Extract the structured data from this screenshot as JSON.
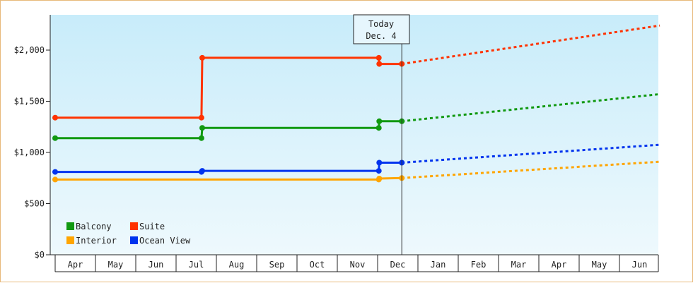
{
  "chart_data": {
    "type": "line",
    "x": [
      "Apr",
      "May",
      "Jun",
      "Jul",
      "Aug",
      "Sep",
      "Oct",
      "Nov",
      "Dec",
      "Jan",
      "Feb",
      "Mar",
      "Apr",
      "May",
      "Jun"
    ],
    "y_ticks": [
      "$0",
      "$500",
      "$1,000",
      "$1,500",
      "$2,000"
    ],
    "ylim": [
      0,
      2350
    ],
    "grid": false,
    "legend_placement": "bottom-left",
    "today_marker": {
      "line1": "Today",
      "line2": "Dec. 4"
    },
    "series": [
      {
        "name": "Suite",
        "color": "#ff3300",
        "history": [
          [
            0,
            1340
          ],
          [
            3.63,
            1340
          ],
          [
            3.65,
            1925
          ],
          [
            8.03,
            1925
          ],
          [
            8.04,
            1865
          ],
          [
            8.6,
            1865
          ]
        ],
        "forecast": [
          [
            8.6,
            1865
          ],
          [
            15,
            2240
          ]
        ]
      },
      {
        "name": "Balcony",
        "color": "#119911",
        "history": [
          [
            0,
            1140
          ],
          [
            3.63,
            1140
          ],
          [
            3.65,
            1240
          ],
          [
            8.03,
            1240
          ],
          [
            8.04,
            1305
          ],
          [
            8.6,
            1305
          ]
        ],
        "forecast": [
          [
            8.6,
            1305
          ],
          [
            15,
            1570
          ]
        ]
      },
      {
        "name": "Ocean View",
        "color": "#0033ee",
        "history": [
          [
            0,
            810
          ],
          [
            3.63,
            810
          ],
          [
            3.65,
            820
          ],
          [
            8.03,
            820
          ],
          [
            8.04,
            900
          ],
          [
            8.6,
            900
          ]
        ],
        "forecast": [
          [
            8.6,
            900
          ],
          [
            15,
            1075
          ]
        ]
      },
      {
        "name": "Interior",
        "color": "#ffa500",
        "history": [
          [
            0,
            735
          ],
          [
            8.03,
            735
          ],
          [
            8.04,
            745
          ],
          [
            8.6,
            750
          ]
        ],
        "forecast": [
          [
            8.6,
            750
          ],
          [
            15,
            910
          ]
        ]
      }
    ],
    "legend": [
      {
        "label": "Balcony",
        "color": "#119911"
      },
      {
        "label": "Suite",
        "color": "#ff3300"
      },
      {
        "label": "Interior",
        "color": "#ffa500"
      },
      {
        "label": "Ocean View",
        "color": "#0033ee"
      }
    ]
  }
}
